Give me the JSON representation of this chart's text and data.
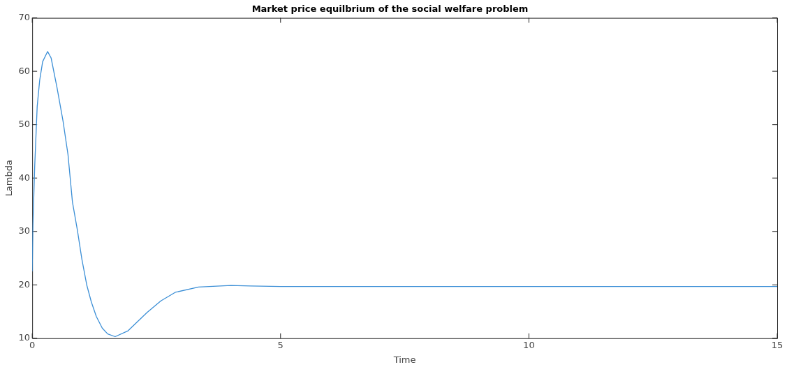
{
  "chart_data": {
    "type": "line",
    "title": "Market price equilbrium of the social welfare problem",
    "xlabel": "Time",
    "ylabel": "Lambda",
    "x": [
      0,
      0.014,
      0.05,
      0.1,
      0.15,
      0.21,
      0.31,
      0.38,
      0.5,
      0.62,
      0.72,
      0.81,
      0.91,
      1.0,
      1.1,
      1.19,
      1.29,
      1.41,
      1.52,
      1.67,
      1.93,
      2.31,
      2.59,
      2.88,
      3.35,
      4.0,
      4.4,
      5,
      10,
      15
    ],
    "series": [
      {
        "color": "#3c8fd6",
        "values": [
          22.6,
          31,
          42.2,
          53.4,
          58.3,
          61.8,
          63.7,
          62.5,
          56.9,
          50.7,
          44.4,
          35.5,
          30.2,
          24.8,
          19.9,
          16.8,
          14.1,
          11.9,
          10.8,
          10.3,
          11.4,
          14.8,
          17.0,
          18.6,
          19.6,
          19.9,
          19.8,
          19.7,
          19.7,
          19.7
        ]
      }
    ],
    "xlim": [
      0,
      15
    ],
    "xticks": [
      0,
      5,
      10,
      15
    ],
    "ylim": [
      10,
      70
    ],
    "yticks": [
      10,
      20,
      30,
      40,
      50,
      60,
      70
    ],
    "grid": false,
    "legend": false,
    "marker": "none",
    "line_style": "solid"
  }
}
